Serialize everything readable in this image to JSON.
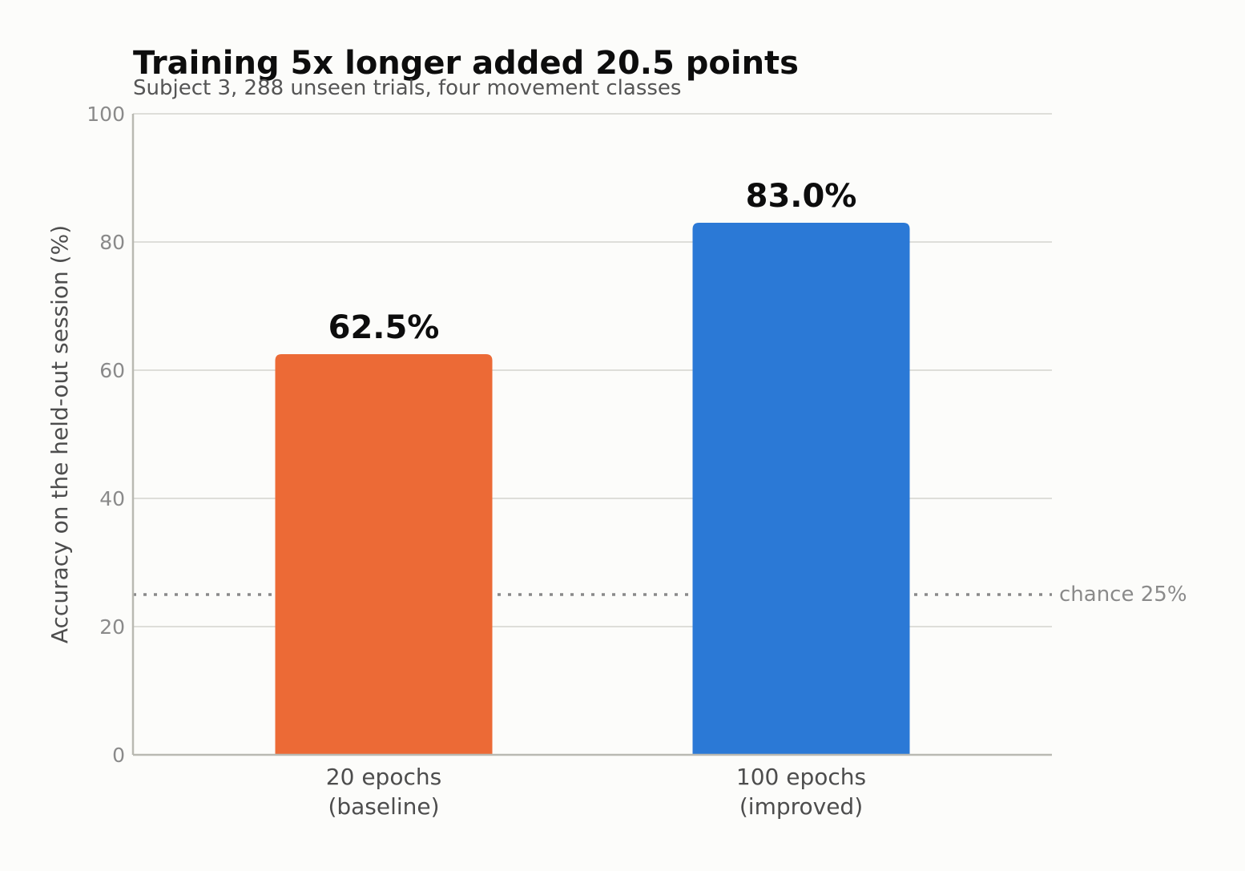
{
  "chart_data": {
    "type": "bar",
    "title": "Training 5x longer added 20.5 points",
    "subtitle": "Subject 3, 288 unseen trials, four movement classes",
    "ylabel": "Accuracy on the held-out session (%)",
    "xlabel": "",
    "ylim": [
      0,
      100
    ],
    "yticks": [
      "0",
      "20",
      "40",
      "60",
      "80",
      "100"
    ],
    "grid": "horizontal",
    "bars": [
      {
        "category_line1": "20 epochs",
        "category_line2": "(baseline)",
        "value": 62.5,
        "label": "62.5%",
        "color": "#ec6a36"
      },
      {
        "category_line1": "100 epochs",
        "category_line2": "(improved)",
        "value": 83.0,
        "label": "83.0%",
        "color": "#2b79d6"
      }
    ],
    "reference_line": {
      "value": 25,
      "label": "chance 25%",
      "style": "dotted",
      "color": "#8a8a8a"
    }
  }
}
